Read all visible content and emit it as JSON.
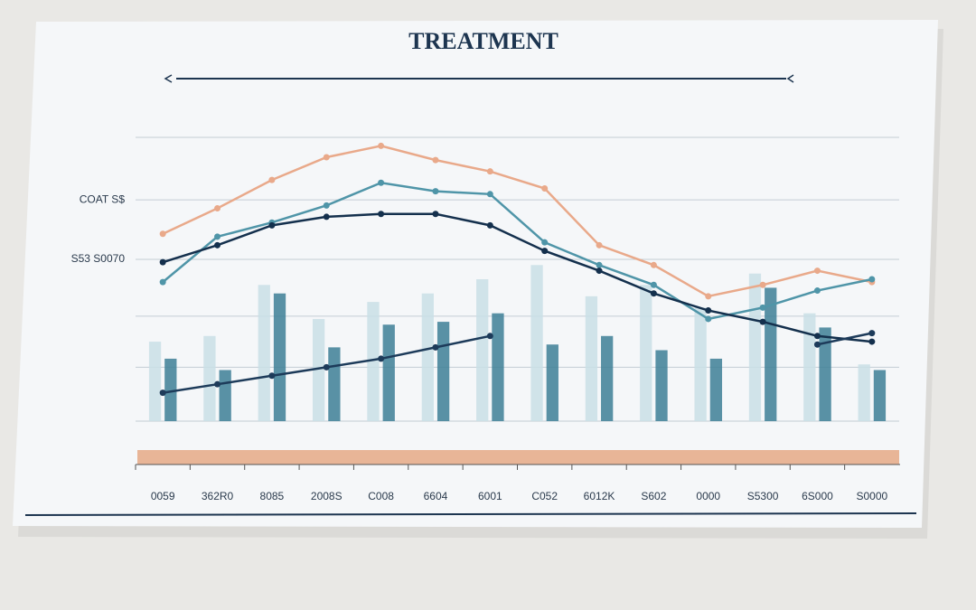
{
  "chart_data": {
    "type": "combo",
    "title": "TREATMENT",
    "categories": [
      "0059",
      "362R0",
      "8085",
      "2008S",
      "C008",
      "6604",
      "6001",
      "C052",
      "6012K",
      "S602",
      "0000",
      "S5300",
      "6S000",
      "S0000"
    ],
    "ylim": [
      0,
      100
    ],
    "yticks": [
      {
        "value": 100,
        "label": null
      },
      {
        "value": 78,
        "label": "COAT S$"
      },
      {
        "value": 57,
        "label": "S53 S0070"
      },
      {
        "value": 37,
        "label": null
      },
      {
        "value": 19,
        "label": null
      },
      {
        "value": 0,
        "label": null
      }
    ],
    "grid": true,
    "series": [
      {
        "type": "bar",
        "color": "#c9dfe6",
        "values": [
          28,
          30,
          48,
          36,
          42,
          45,
          50,
          55,
          44,
          48,
          40,
          52,
          38,
          20
        ]
      },
      {
        "type": "bar",
        "color": "#3d7f96",
        "values": [
          22,
          18,
          45,
          26,
          34,
          35,
          38,
          27,
          30,
          25,
          22,
          47,
          33,
          18
        ]
      },
      {
        "type": "line",
        "color": "#e9a98a",
        "values": [
          66,
          75,
          85,
          93,
          97,
          92,
          88,
          82,
          62,
          55,
          44,
          48,
          53,
          49
        ]
      },
      {
        "type": "line",
        "color": "#4f95a8",
        "values": [
          49,
          65,
          70,
          76,
          84,
          81,
          80,
          63,
          55,
          48,
          36,
          40,
          46,
          50
        ]
      },
      {
        "type": "line",
        "color": "#14304d",
        "values": [
          56,
          62,
          69,
          72,
          73,
          73,
          69,
          60,
          53,
          45,
          39,
          35,
          30,
          28
        ]
      },
      {
        "type": "line",
        "color": "#1d3b5a",
        "values": [
          10,
          13,
          16,
          19,
          22,
          26,
          30,
          null,
          null,
          null,
          null,
          null,
          27,
          31
        ]
      }
    ]
  }
}
